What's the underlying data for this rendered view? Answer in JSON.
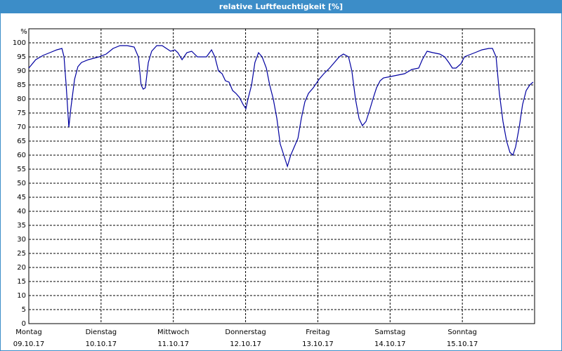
{
  "window_title": "relative Luftfeuchtigkeit [%]",
  "chart_data": {
    "type": "line",
    "y_label": "%",
    "color": "#0000a0",
    "xlim": [
      0,
      168
    ],
    "ylim": [
      0,
      105
    ],
    "grid": true,
    "yticks": [
      0,
      5,
      10,
      15,
      20,
      25,
      30,
      35,
      40,
      45,
      50,
      55,
      60,
      65,
      70,
      75,
      80,
      85,
      90,
      95,
      100
    ],
    "xticks": [
      {
        "value": 0,
        "label": "Montag"
      },
      {
        "value": 24,
        "label": "Dienstag"
      },
      {
        "value": 48,
        "label": "Mittwoch"
      },
      {
        "value": 72,
        "label": "Donnerstag"
      },
      {
        "value": 96,
        "label": "Freitag"
      },
      {
        "value": 120,
        "label": "Samstag"
      },
      {
        "value": 144,
        "label": "Sonntag"
      }
    ],
    "xtick_dates": [
      "09.10.17",
      "10.10.17",
      "11.10.17",
      "12.10.17",
      "13.10.17",
      "14.10.17",
      "15.10.17"
    ],
    "x": [
      0,
      2.3,
      4.7,
      7,
      9.3,
      11,
      11.7,
      12.4,
      13.3,
      14,
      15.2,
      16.3,
      17.5,
      19.8,
      23.3,
      25.7,
      28,
      30.3,
      32.7,
      35,
      36.4,
      37.3,
      38,
      38.7,
      39.7,
      40.8,
      42.5,
      44.3,
      45.7,
      47.1,
      48.5,
      49.5,
      50.9,
      52.5,
      54.1,
      56,
      57.9,
      59,
      60.7,
      61.8,
      63,
      64.2,
      65.3,
      66.5,
      67.7,
      68.8,
      70,
      71.2,
      72.1,
      72.8,
      74,
      75.1,
      76.3,
      77.5,
      78.9,
      80,
      81.2,
      82.4,
      83.5,
      84.7,
      85.9,
      87,
      88.2,
      89.4,
      90.5,
      91.7,
      92.9,
      94.5,
      96.4,
      98,
      99.9,
      101.5,
      103.1,
      104.5,
      106.2,
      107.3,
      108.5,
      109.7,
      110.8,
      112,
      113.2,
      114.3,
      115.5,
      116.7,
      117.8,
      120.2,
      122.5,
      124.8,
      127.2,
      129.5,
      130.7,
      132.3,
      134.2,
      136.5,
      138.1,
      139.5,
      140.7,
      141.9,
      143.5,
      144.7,
      145.8,
      148.2,
      150.5,
      152.8,
      154,
      155.2,
      156.3,
      157.5,
      158.7,
      159.8,
      160.8,
      161.7,
      162.9,
      164,
      165.2,
      166.4,
      167.5
    ],
    "values": [
      91,
      94,
      95.5,
      96.5,
      97.5,
      98,
      95,
      85,
      70,
      77,
      87,
      91.5,
      93,
      94,
      95,
      96,
      98,
      99,
      99,
      98.5,
      95,
      85,
      83.5,
      84,
      93,
      97,
      99,
      99,
      98,
      97,
      97.5,
      96.5,
      94,
      96.5,
      97,
      95,
      95,
      95,
      97.5,
      95,
      90,
      89,
      86.5,
      86,
      83,
      82,
      80.5,
      78,
      76.5,
      80,
      85,
      93,
      96.5,
      95,
      91,
      85,
      80,
      73,
      64,
      60,
      56,
      60,
      63,
      66,
      73,
      79,
      82,
      84,
      87,
      89,
      91,
      93,
      95,
      96,
      95,
      90,
      80,
      73,
      70.5,
      72,
      76,
      80,
      84,
      86.5,
      87.5,
      88,
      88.5,
      89,
      90.5,
      91,
      94,
      97,
      96.5,
      96,
      95,
      93,
      91,
      91,
      92.5,
      95,
      95.5,
      96.5,
      97.5,
      98,
      98,
      95,
      82,
      72,
      65,
      61,
      60,
      63,
      70,
      78,
      83,
      85,
      86
    ]
  }
}
